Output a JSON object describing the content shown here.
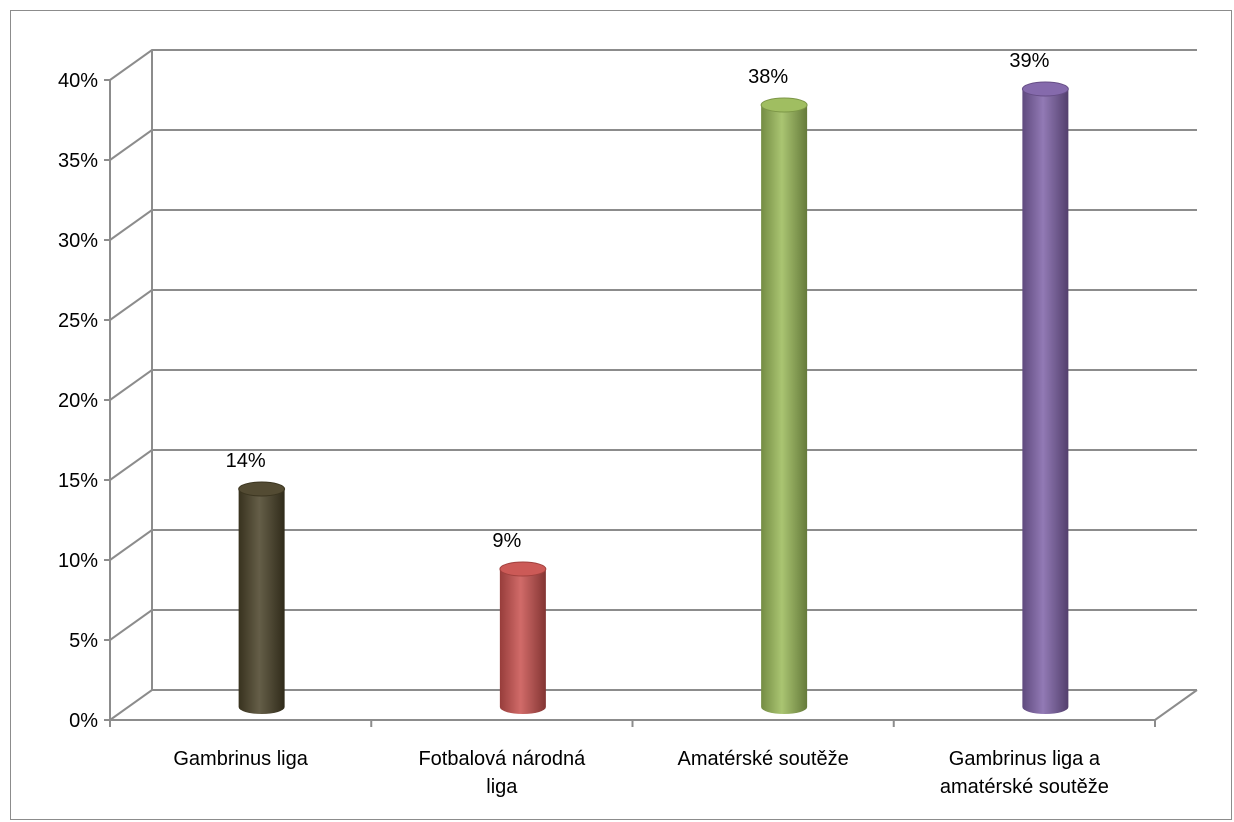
{
  "chart_data": {
    "type": "bar",
    "categories": [
      [
        "Gambrinus liga"
      ],
      [
        "Fotbalová národná",
        "liga"
      ],
      [
        "Amatérské soutěže"
      ],
      [
        "Gambrinus liga a",
        "amatérské soutěže"
      ]
    ],
    "values": [
      14,
      9,
      38,
      39
    ],
    "data_labels": [
      "14%",
      "9%",
      "38%",
      "39%"
    ],
    "y_ticks": [
      "0%",
      "5%",
      "10%",
      "15%",
      "20%",
      "25%",
      "30%",
      "35%",
      "40%"
    ],
    "ylim": [
      0,
      40
    ],
    "grid": true,
    "legend": "none",
    "colors": [
      "#4a4228",
      "#c9514e",
      "#9bbb59",
      "#7f62a8"
    ],
    "title": "",
    "xlabel": "",
    "ylabel": ""
  }
}
